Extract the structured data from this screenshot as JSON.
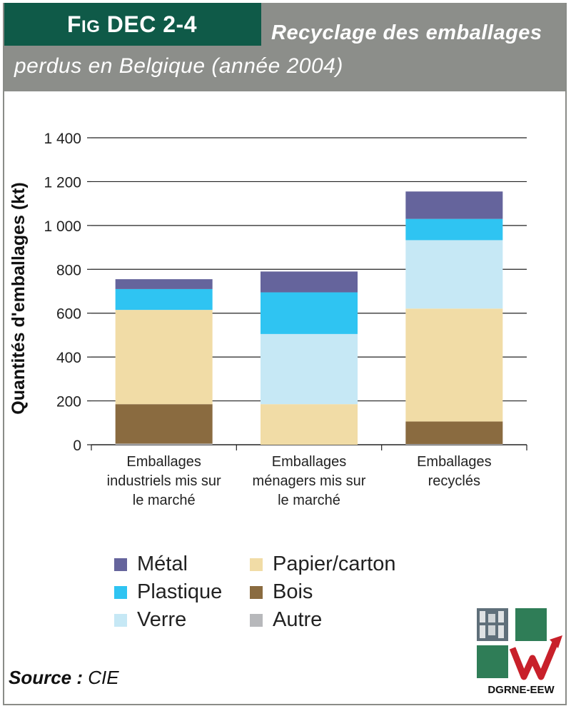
{
  "header": {
    "fig_label_first": "F",
    "fig_label_small": "IG",
    "fig_label_rest": " DEC 2-4",
    "title_line1": "Recyclage des emballages",
    "title_line2": "perdus en Belgique (année 2004)"
  },
  "colors": {
    "header_bg": "#8c8e8a",
    "fig_box_bg": "#0f5a48",
    "metal": "#65649c",
    "plastique": "#2fc4f2",
    "verre": "#c6e8f5",
    "papier_carton": "#f1dca6",
    "bois": "#8a6b40",
    "autre": "#b7b8bb"
  },
  "chart_data": {
    "type": "bar",
    "stacked": true,
    "categories": [
      "Emballages industriels mis sur le marché",
      "Emballages ménagers mis sur le marché",
      "Emballages recyclés"
    ],
    "category_lines": [
      [
        "Emballages",
        "industriels mis sur",
        "le marché"
      ],
      [
        "Emballages",
        "ménagers mis sur",
        "le marché"
      ],
      [
        "Emballages",
        "recyclés"
      ]
    ],
    "series": [
      {
        "name": "Autre",
        "color_key": "autre",
        "values": [
          5,
          0,
          3
        ]
      },
      {
        "name": "Bois",
        "color_key": "bois",
        "values": [
          180,
          0,
          103
        ]
      },
      {
        "name": "Papier/carton",
        "color_key": "papier_carton",
        "values": [
          430,
          185,
          515
        ]
      },
      {
        "name": "Verre",
        "color_key": "verre",
        "values": [
          0,
          320,
          312
        ]
      },
      {
        "name": "Plastique",
        "color_key": "plastique",
        "values": [
          95,
          190,
          97
        ]
      },
      {
        "name": "Métal",
        "color_key": "metal",
        "values": [
          45,
          95,
          125
        ]
      }
    ],
    "ylabel": "Quantités d'emballages (kt)",
    "ylim": [
      0,
      1400
    ],
    "yticks": [
      0,
      200,
      400,
      600,
      800,
      1000,
      1200,
      1400
    ],
    "ytick_labels": [
      "0",
      "200",
      "400",
      "600",
      "800",
      "1 000",
      "1 200",
      "1 400"
    ],
    "grid": true,
    "legend_placement": "bottom"
  },
  "legend": [
    {
      "label": "Métal",
      "color_key": "metal"
    },
    {
      "label": "Plastique",
      "color_key": "plastique"
    },
    {
      "label": "Verre",
      "color_key": "verre"
    },
    {
      "label": "Papier/carton",
      "color_key": "papier_carton"
    },
    {
      "label": "Bois",
      "color_key": "bois"
    },
    {
      "label": "Autre",
      "color_key": "autre"
    }
  ],
  "source": {
    "label": "Source :",
    "value": "CIE"
  },
  "logo": {
    "text": "DGRNE-EEW"
  }
}
